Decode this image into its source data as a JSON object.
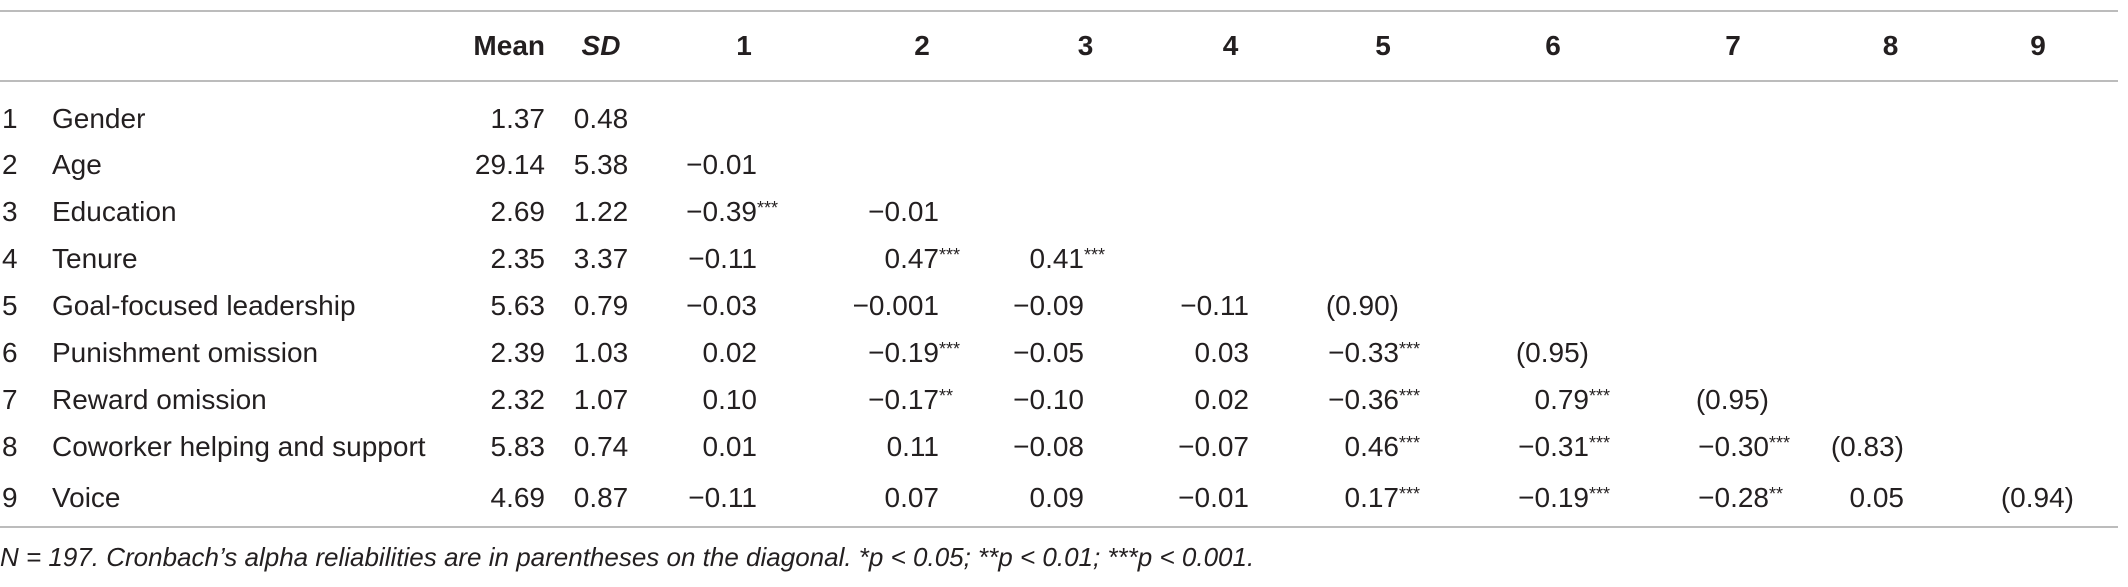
{
  "table": {
    "headers": {
      "blank": "",
      "mean": "Mean",
      "sd": "SD",
      "c1": "1",
      "c2": "2",
      "c3": "3",
      "c4": "4",
      "c5": "5",
      "c6": "6",
      "c7": "7",
      "c8": "8",
      "c9": "9"
    },
    "rows": [
      {
        "num": "1",
        "label": "Gender",
        "mean": "1.37",
        "sd": "0.48",
        "cells": [
          [
            "",
            ""
          ],
          [
            "",
            ""
          ],
          [
            "",
            ""
          ],
          [
            "",
            ""
          ],
          [
            "",
            ""
          ],
          [
            "",
            ""
          ],
          [
            "",
            ""
          ],
          [
            "",
            ""
          ],
          [
            "",
            ""
          ]
        ]
      },
      {
        "num": "2",
        "label": "Age",
        "mean": "29.14",
        "sd": "5.38",
        "cells": [
          [
            "−0.01",
            ""
          ],
          [
            "",
            ""
          ],
          [
            "",
            ""
          ],
          [
            "",
            ""
          ],
          [
            "",
            ""
          ],
          [
            "",
            ""
          ],
          [
            "",
            ""
          ],
          [
            "",
            ""
          ],
          [
            "",
            ""
          ]
        ]
      },
      {
        "num": "3",
        "label": "Education",
        "mean": "2.69",
        "sd": "1.22",
        "cells": [
          [
            "−0.39",
            "***"
          ],
          [
            "−0.01",
            ""
          ],
          [
            "",
            ""
          ],
          [
            "",
            ""
          ],
          [
            "",
            ""
          ],
          [
            "",
            ""
          ],
          [
            "",
            ""
          ],
          [
            "",
            ""
          ],
          [
            "",
            ""
          ]
        ]
      },
      {
        "num": "4",
        "label": "Tenure",
        "mean": "2.35",
        "sd": "3.37",
        "cells": [
          [
            "−0.11",
            ""
          ],
          [
            "0.47",
            "***"
          ],
          [
            "0.41",
            "***"
          ],
          [
            "",
            ""
          ],
          [
            "",
            ""
          ],
          [
            "",
            ""
          ],
          [
            "",
            ""
          ],
          [
            "",
            ""
          ],
          [
            "",
            ""
          ]
        ]
      },
      {
        "num": "5",
        "label": "Goal-focused leadership",
        "mean": "5.63",
        "sd": "0.79",
        "cells": [
          [
            "−0.03",
            ""
          ],
          [
            "−0.001",
            ""
          ],
          [
            "−0.09",
            ""
          ],
          [
            "−0.11",
            ""
          ],
          [
            "(0.90)",
            ""
          ],
          [
            "",
            ""
          ],
          [
            "",
            ""
          ],
          [
            "",
            ""
          ],
          [
            "",
            ""
          ]
        ]
      },
      {
        "num": "6",
        "label": "Punishment omission",
        "mean": "2.39",
        "sd": "1.03",
        "cells": [
          [
            "0.02",
            ""
          ],
          [
            "−0.19",
            "***"
          ],
          [
            "−0.05",
            ""
          ],
          [
            "0.03",
            ""
          ],
          [
            "−0.33",
            "***"
          ],
          [
            "(0.95)",
            ""
          ],
          [
            "",
            ""
          ],
          [
            "",
            ""
          ],
          [
            "",
            ""
          ]
        ]
      },
      {
        "num": "7",
        "label": "Reward omission",
        "mean": "2.32",
        "sd": "1.07",
        "cells": [
          [
            "0.10",
            ""
          ],
          [
            "−0.17",
            "**"
          ],
          [
            "−0.10",
            ""
          ],
          [
            "0.02",
            ""
          ],
          [
            "−0.36",
            "***"
          ],
          [
            "0.79",
            "***"
          ],
          [
            "(0.95)",
            ""
          ],
          [
            "",
            ""
          ],
          [
            "",
            ""
          ]
        ]
      },
      {
        "num": "8",
        "label": "Coworker helping and support",
        "mean": "5.83",
        "sd": "0.74",
        "cells": [
          [
            "0.01",
            ""
          ],
          [
            "0.11",
            ""
          ],
          [
            "−0.08",
            ""
          ],
          [
            "−0.07",
            ""
          ],
          [
            "0.46",
            "***"
          ],
          [
            "−0.31",
            "***"
          ],
          [
            "−0.30",
            "***"
          ],
          [
            "(0.83)",
            ""
          ],
          [
            "",
            ""
          ]
        ]
      },
      {
        "num": "9",
        "label": "Voice",
        "mean": "4.69",
        "sd": "0.87",
        "cells": [
          [
            "−0.11",
            ""
          ],
          [
            "0.07",
            ""
          ],
          [
            "0.09",
            ""
          ],
          [
            "−0.01",
            ""
          ],
          [
            "0.17",
            "***"
          ],
          [
            "−0.19",
            "***"
          ],
          [
            "−0.28",
            "**"
          ],
          [
            "0.05",
            ""
          ],
          [
            "(0.94)",
            ""
          ]
        ]
      }
    ],
    "note": "N = 197. Cronbach’s alpha reliabilities are in parentheses on the diagonal. *p < 0.05; **p < 0.01; ***p < 0.001."
  }
}
